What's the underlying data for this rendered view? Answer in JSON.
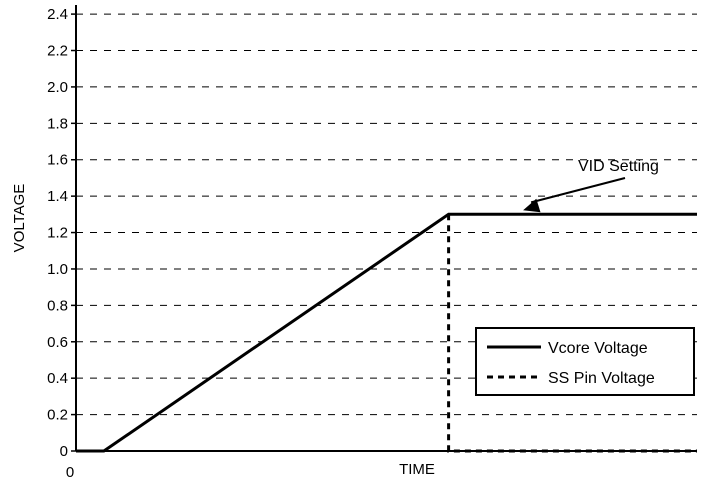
{
  "chart_data": {
    "type": "line",
    "title": "",
    "xlabel": "TIME",
    "ylabel": "VOLTAGE",
    "x_tick_labels": [
      "0"
    ],
    "y_ticks": [
      0,
      0.2,
      0.4,
      0.6,
      0.8,
      1.0,
      1.2,
      1.4,
      1.6,
      1.8,
      2.0,
      2.2,
      2.4
    ],
    "y_tick_labels": [
      "0",
      "0.2",
      "0.4",
      "0.6",
      "0.8",
      "1.0",
      "1.2",
      "1.4",
      "1.6",
      "1.8",
      "2.0",
      "2.2",
      "2.4"
    ],
    "ylim": [
      0,
      2.45
    ],
    "xlim": [
      0,
      10
    ],
    "grid": {
      "horizontal": true,
      "style": "dashed"
    },
    "legend": {
      "placement": "bottom-right"
    },
    "series": [
      {
        "name": "Vcore Voltage",
        "style": "solid",
        "points": [
          [
            0,
            0
          ],
          [
            0.45,
            0
          ],
          [
            6.0,
            1.3
          ],
          [
            10,
            1.3
          ]
        ]
      },
      {
        "name": "SS Pin Voltage",
        "style": "dashed",
        "points": [
          [
            6.0,
            1.3
          ],
          [
            6.0,
            0
          ],
          [
            10,
            0
          ]
        ]
      }
    ],
    "annotations": [
      {
        "text": "VID Setting",
        "arrow_to": [
          7.2,
          1.3
        ]
      }
    ]
  }
}
